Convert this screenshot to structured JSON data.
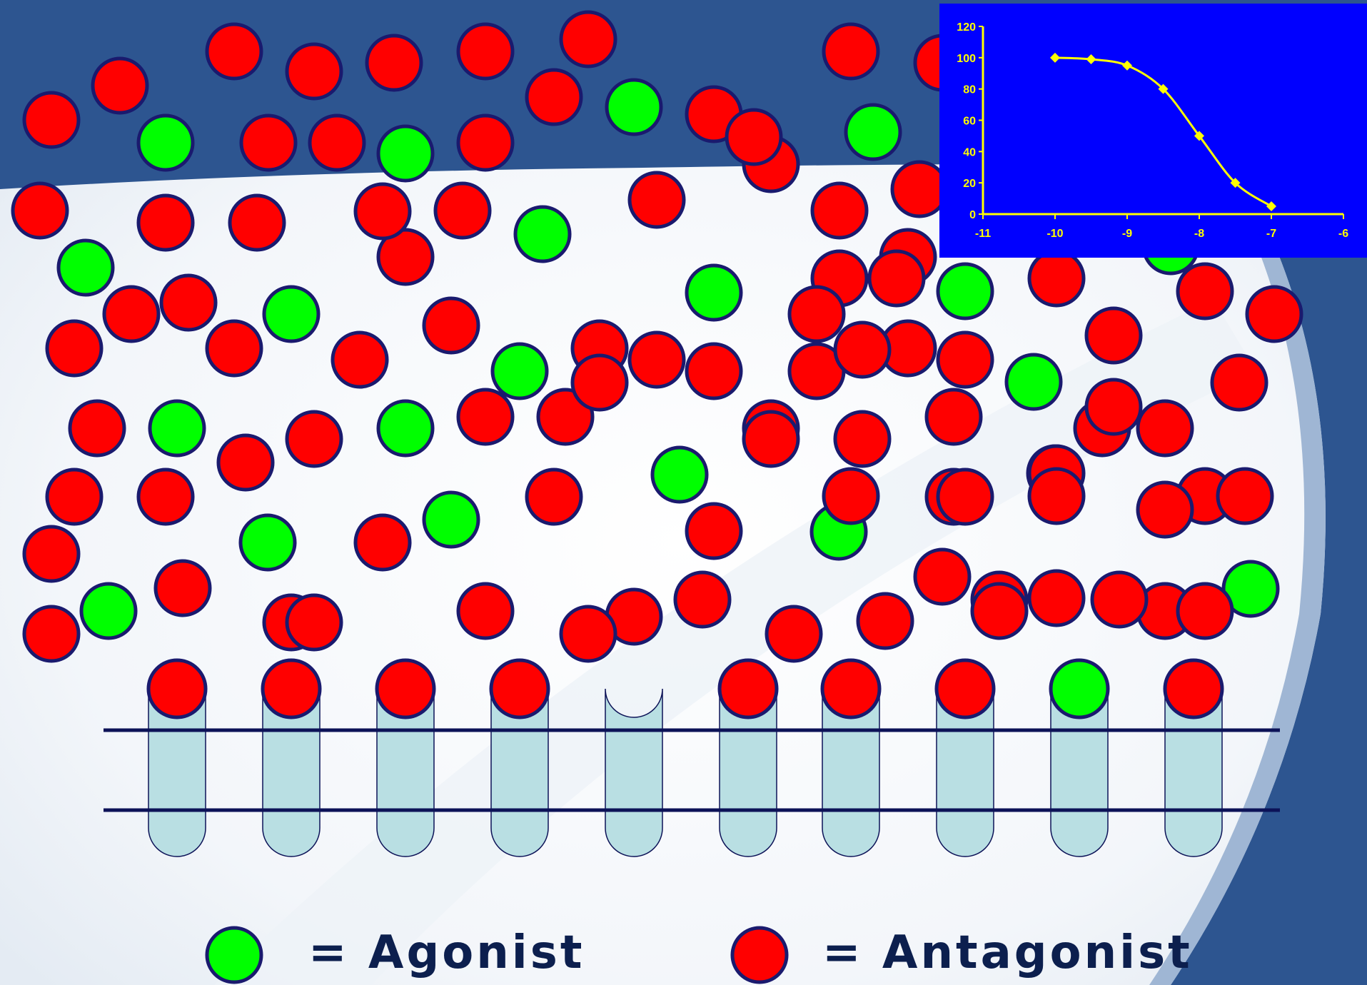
{
  "legend": {
    "agonist_label": "= Agonist",
    "antagonist_label": "= Antagonist"
  },
  "colors": {
    "agonist": "#00ff00",
    "antagonist": "#ff0000",
    "molecule_outline": "#1a1a6e",
    "receptor_fill": "#b9dfe3",
    "membrane_line": "#0c1257",
    "band_dark": "#2d5590",
    "chart_background": "#0000ff",
    "chart_line": "#ffff00"
  },
  "receptors": [
    {
      "ligand": "antagonist"
    },
    {
      "ligand": "antagonist"
    },
    {
      "ligand": "antagonist"
    },
    {
      "ligand": "antagonist"
    },
    {
      "ligand": "none"
    },
    {
      "ligand": "antagonist"
    },
    {
      "ligand": "antagonist"
    },
    {
      "ligand": "antagonist"
    },
    {
      "ligand": "agonist"
    },
    {
      "ligand": "antagonist"
    }
  ],
  "free_molecules": {
    "agonist_count": 20,
    "antagonist_count": 92
  },
  "chart_data": {
    "type": "line",
    "title": "",
    "xlabel": "",
    "ylabel": "",
    "x": [
      -10,
      -9.5,
      -9,
      -8.5,
      -8,
      -7.5,
      -7
    ],
    "series": [
      {
        "values": [
          100,
          99,
          95,
          80,
          50,
          20,
          5
        ]
      }
    ],
    "xlim": [
      -11,
      -6
    ],
    "ylim": [
      0,
      120
    ],
    "xticks": [
      "-11",
      "-10",
      "-9",
      "-8",
      "-7",
      "-6"
    ],
    "yticks": [
      "0",
      "20",
      "40",
      "60",
      "80",
      "100",
      "120"
    ],
    "grid": false,
    "marker": "diamond"
  }
}
